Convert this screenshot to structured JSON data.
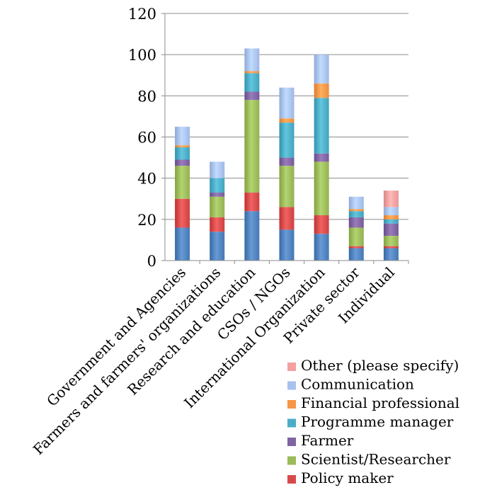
{
  "chart_data": {
    "type": "bar",
    "stacked": true,
    "categories": [
      "Government and Agencies",
      "Farmers and farmers' organizations",
      "Research and education",
      "CSOs / NGOs",
      "International Organization",
      "Private sector",
      "Individual"
    ],
    "series": [
      {
        "name": "Other (please specify)",
        "color": "#F2A0A0",
        "values": [
          0,
          0,
          0,
          0,
          0,
          0,
          8
        ]
      },
      {
        "name": "Communication",
        "color": "#A8C2EE",
        "values": [
          9,
          8,
          11,
          15,
          14,
          6,
          4
        ]
      },
      {
        "name": "Financial professional",
        "color": "#F79646",
        "values": [
          1,
          0,
          1,
          2,
          7,
          1,
          2
        ]
      },
      {
        "name": "Programme manager",
        "color": "#4BACC6",
        "values": [
          6,
          7,
          9,
          17,
          27,
          3,
          2
        ]
      },
      {
        "name": "Farmer",
        "color": "#8064A2",
        "values": [
          3,
          2,
          4,
          4,
          4,
          5,
          6
        ]
      },
      {
        "name": "Scientist/Researcher",
        "color": "#9BBB59",
        "values": [
          16,
          10,
          45,
          20,
          26,
          9,
          5
        ]
      },
      {
        "name": "Policy maker",
        "color": "#D84A4A",
        "values": [
          14,
          7,
          9,
          11,
          9,
          1,
          1
        ]
      },
      {
        "name": "",
        "color": "#4F81BD",
        "values": [
          16,
          14,
          24,
          15,
          13,
          6,
          6
        ]
      }
    ],
    "yticks": [
      "0",
      "20",
      "40",
      "60",
      "80",
      "100",
      "120"
    ],
    "ylim": [
      0,
      120
    ],
    "legend": "bottom-right",
    "grid": true
  }
}
